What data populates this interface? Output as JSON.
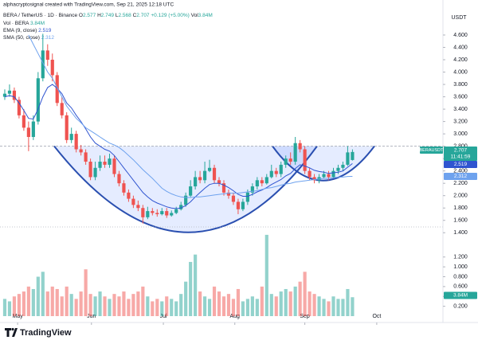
{
  "chart_data": {
    "type": "candlestick",
    "attribution": "alphacryptosignal created with TradingView.com, Sep 21, 2025 12:18 UTC",
    "title": "BERA / TetherUS · 1D · Binance",
    "ohlc_labels": [
      "O",
      "H",
      "L",
      "C"
    ],
    "change": "+0.129 (+5.00%)",
    "volume_prefix": "Vol",
    "volume_label": "3.84M",
    "currency": "USDT",
    "symbol_badge": "BERAUSDT",
    "countdown": "11:41:59",
    "up_color": "#26a69a",
    "down_color": "#ef5350",
    "open": [
      3.6,
      3.65,
      3.7,
      3.55,
      3.3,
      3.1,
      2.95,
      3.2,
      3.9,
      4.35,
      4.2,
      3.95,
      3.5,
      3.3,
      2.9,
      3.0,
      2.75,
      2.7,
      2.55,
      2.3,
      2.45,
      2.55,
      2.5,
      2.6,
      2.35,
      2.2,
      2.05,
      1.95,
      1.85,
      1.8,
      1.65,
      1.75,
      1.72,
      1.7,
      1.75,
      1.68,
      1.72,
      1.78,
      1.85,
      2.0,
      2.15,
      2.3,
      2.25,
      2.4,
      2.45,
      2.25,
      2.2,
      2.05,
      2.0,
      1.9,
      1.78,
      1.9,
      2.05,
      2.15,
      2.25,
      2.2,
      2.3,
      2.4,
      2.35,
      2.5,
      2.6,
      2.55,
      2.85,
      2.75,
      2.4,
      2.3,
      2.25,
      2.3,
      2.35,
      2.3,
      2.4,
      2.45,
      2.5,
      2.577
    ],
    "high": [
      3.72,
      3.8,
      3.75,
      3.6,
      3.4,
      3.2,
      3.3,
      4.0,
      4.62,
      4.45,
      4.3,
      4.0,
      3.6,
      3.35,
      3.1,
      3.05,
      2.82,
      2.75,
      2.6,
      2.55,
      2.65,
      2.65,
      2.68,
      2.65,
      2.4,
      2.25,
      2.1,
      2.0,
      1.92,
      1.85,
      1.82,
      1.8,
      1.78,
      1.8,
      1.8,
      1.76,
      1.82,
      1.9,
      2.05,
      2.25,
      2.4,
      2.4,
      2.55,
      2.58,
      2.5,
      2.3,
      2.25,
      2.1,
      2.05,
      1.95,
      1.95,
      2.1,
      2.2,
      2.3,
      2.3,
      2.35,
      2.5,
      2.45,
      2.55,
      2.65,
      2.7,
      2.95,
      2.9,
      2.8,
      2.45,
      2.35,
      2.35,
      2.4,
      2.4,
      2.45,
      2.5,
      2.55,
      2.8,
      2.749
    ],
    "low": [
      3.55,
      3.6,
      3.5,
      3.25,
      3.05,
      2.72,
      2.9,
      3.15,
      3.85,
      4.1,
      3.85,
      3.45,
      3.25,
      2.85,
      2.85,
      2.7,
      2.65,
      2.5,
      2.25,
      2.25,
      2.4,
      2.45,
      2.45,
      2.3,
      2.15,
      2.0,
      1.9,
      1.8,
      1.75,
      1.55,
      1.62,
      1.68,
      1.66,
      1.68,
      1.64,
      1.66,
      1.7,
      1.76,
      1.82,
      1.98,
      2.1,
      2.2,
      2.2,
      2.38,
      2.2,
      2.15,
      2.0,
      1.95,
      1.85,
      1.7,
      1.75,
      1.85,
      2.0,
      2.1,
      2.15,
      2.18,
      2.28,
      2.3,
      2.3,
      2.45,
      2.5,
      2.5,
      2.7,
      2.35,
      2.25,
      2.2,
      2.2,
      2.28,
      2.25,
      2.28,
      2.35,
      2.4,
      2.48,
      2.568
    ],
    "close": [
      3.65,
      3.7,
      3.55,
      3.3,
      3.1,
      2.95,
      3.2,
      3.9,
      4.35,
      4.2,
      3.95,
      3.5,
      3.3,
      2.9,
      3.0,
      2.75,
      2.7,
      2.55,
      2.3,
      2.45,
      2.55,
      2.5,
      2.6,
      2.35,
      2.2,
      2.05,
      1.95,
      1.85,
      1.8,
      1.65,
      1.75,
      1.72,
      1.7,
      1.75,
      1.68,
      1.72,
      1.78,
      1.85,
      2.0,
      2.15,
      2.3,
      2.25,
      2.4,
      2.45,
      2.25,
      2.2,
      2.05,
      2.0,
      1.9,
      1.78,
      1.9,
      2.05,
      2.15,
      2.25,
      2.2,
      2.3,
      2.4,
      2.35,
      2.5,
      2.6,
      2.55,
      2.85,
      2.75,
      2.4,
      2.3,
      2.25,
      2.3,
      2.35,
      2.3,
      2.4,
      2.45,
      2.5,
      2.7,
      2.707
    ],
    "volume": {
      "name": "Vol · BERA",
      "axis": "y2",
      "values": [
        0.35,
        0.3,
        0.4,
        0.45,
        0.5,
        0.6,
        0.55,
        0.8,
        0.9,
        0.5,
        0.6,
        0.55,
        0.4,
        0.6,
        0.45,
        0.35,
        0.5,
        0.95,
        0.45,
        0.4,
        0.5,
        0.4,
        0.35,
        0.45,
        0.4,
        0.5,
        0.35,
        0.45,
        0.5,
        0.6,
        0.4,
        0.3,
        0.35,
        0.3,
        0.4,
        0.35,
        0.3,
        0.45,
        0.7,
        1.1,
        1.25,
        0.5,
        0.4,
        0.35,
        0.6,
        0.5,
        0.4,
        0.45,
        0.35,
        0.55,
        0.3,
        0.35,
        0.4,
        0.35,
        0.6,
        1.65,
        0.45,
        0.4,
        0.5,
        0.55,
        0.5,
        0.6,
        0.7,
        0.9,
        0.5,
        0.45,
        0.4,
        0.35,
        0.3,
        0.4,
        0.35,
        0.35,
        0.55,
        0.384
      ]
    },
    "series": [
      {
        "name": "EMA (9, close)",
        "color": "#2f54d0",
        "values": [
          3.6,
          3.62,
          3.6,
          3.5,
          3.38,
          3.25,
          3.24,
          3.4,
          3.6,
          3.75,
          3.8,
          3.74,
          3.65,
          3.5,
          3.42,
          3.3,
          3.2,
          3.08,
          2.95,
          2.85,
          2.8,
          2.75,
          2.72,
          2.65,
          2.55,
          2.45,
          2.35,
          2.25,
          2.15,
          2.05,
          1.98,
          1.92,
          1.88,
          1.85,
          1.82,
          1.8,
          1.79,
          1.8,
          1.84,
          1.9,
          1.98,
          2.05,
          2.12,
          2.18,
          2.2,
          2.2,
          2.17,
          2.13,
          2.08,
          2.02,
          1.99,
          1.99,
          2.02,
          2.06,
          2.09,
          2.13,
          2.18,
          2.22,
          2.26,
          2.32,
          2.36,
          2.44,
          2.5,
          2.48,
          2.45,
          2.41,
          2.39,
          2.38,
          2.36,
          2.37,
          2.38,
          2.4,
          2.46,
          2.519
        ]
      },
      {
        "name": "SMA (50, close)",
        "color": "#6ea2ee",
        "values": [
          null,
          null,
          null,
          null,
          null,
          4.6,
          4.45,
          4.3,
          4.15,
          4.0,
          3.9,
          3.75,
          3.6,
          3.45,
          3.35,
          3.25,
          3.18,
          3.1,
          3.05,
          3.0,
          2.95,
          2.9,
          2.85,
          2.82,
          2.78,
          2.72,
          2.65,
          2.58,
          2.5,
          2.42,
          2.35,
          2.28,
          2.2,
          2.12,
          2.07,
          2.03,
          2.0,
          1.98,
          1.97,
          1.97,
          1.98,
          1.98,
          1.99,
          2.0,
          2.01,
          2.02,
          2.03,
          2.04,
          2.04,
          2.04,
          2.05,
          2.06,
          2.07,
          2.08,
          2.1,
          2.12,
          2.13,
          2.15,
          2.17,
          2.19,
          2.2,
          2.22,
          2.23,
          2.24,
          2.25,
          2.26,
          2.27,
          2.28,
          2.28,
          2.29,
          2.3,
          2.3,
          2.31,
          2.312
        ]
      }
    ],
    "xlim": [
      -1,
      92
    ],
    "xticks": [
      {
        "value": 2.7,
        "label": "May"
      },
      {
        "value": 18.2,
        "label": "Jun"
      },
      {
        "value": 33.3,
        "label": "Jul"
      },
      {
        "value": 48.3,
        "label": "Aug"
      },
      {
        "value": 63,
        "label": "Sep"
      },
      {
        "value": 78.1,
        "label": "Oct"
      }
    ],
    "ylim": [
      0.05,
      4.78
    ],
    "yticks": [
      {
        "value": 4.6,
        "label": "4.600"
      },
      {
        "value": 4.4,
        "label": "4.400"
      },
      {
        "value": 4.2,
        "label": "4.200"
      },
      {
        "value": 4,
        "label": "4.000"
      },
      {
        "value": 3.8,
        "label": "3.800"
      },
      {
        "value": 3.6,
        "label": "3.600"
      },
      {
        "value": 3.4,
        "label": "3.400"
      },
      {
        "value": 3.2,
        "label": "3.200"
      },
      {
        "value": 3,
        "label": "3.000"
      },
      {
        "value": 2.8,
        "label": "2.800"
      },
      {
        "value": 2.6,
        "label": "2.600"
      },
      {
        "value": 2.4,
        "label": "2.400"
      },
      {
        "value": 2.2,
        "label": "2.200"
      },
      {
        "value": 2,
        "label": "2.000"
      },
      {
        "value": 1.8,
        "label": "1.800"
      },
      {
        "value": 1.6,
        "label": "1.600"
      },
      {
        "value": 1.4,
        "label": "1.400"
      }
    ],
    "y2lim": [
      0,
      1.6
    ],
    "y2ticks": [
      {
        "value": 1.2,
        "label": "1.200"
      },
      {
        "value": 1,
        "label": "1.000"
      },
      {
        "value": 0.8,
        "label": "0.800"
      },
      {
        "value": 0.6,
        "label": "0.600"
      },
      {
        "value": 0.4,
        "label": "0.400"
      },
      {
        "value": 0.2,
        "label": "0.200"
      }
    ]
  },
  "brand": "TradingView"
}
